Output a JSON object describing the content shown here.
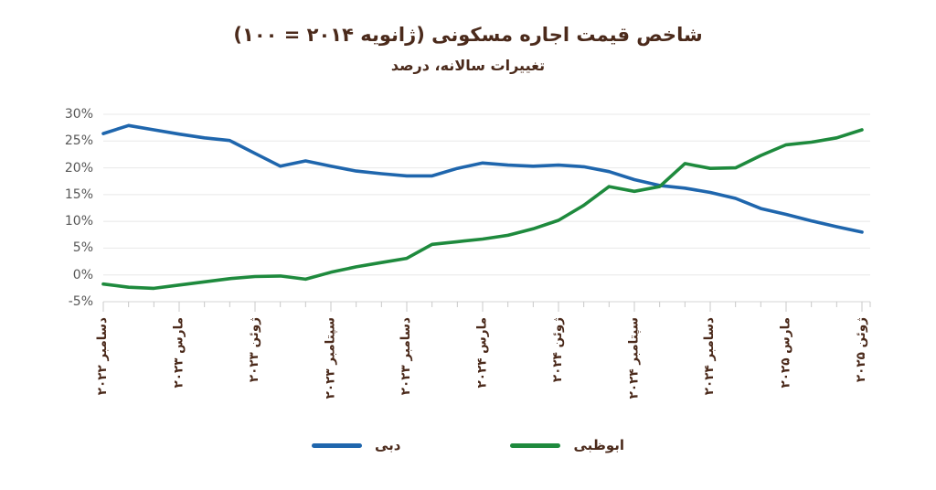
{
  "header": {
    "title": "شاخص قیمت اجاره مسکونی (ژانویه ۲۰۱۴ = ۱۰۰)",
    "subtitle": "تغییرات سالانه، درصد",
    "title_color": "#4b2a1b"
  },
  "colors": {
    "dubai_blue": "#1f66ad",
    "abudhabi_green": "#1e8a3d",
    "heading_brown": "#4b2a1b",
    "axis_text_gray": "#575757",
    "gridline": "#e8e8e8",
    "axis_line": "#d6d6d6",
    "tick": "#c8c8c8",
    "background": "#ffffff"
  },
  "chart_data": {
    "type": "line",
    "title": "شاخص قیمت اجاره مسکونی (ژانویه ۲۰۱۴ = ۱۰۰)",
    "subtitle": "تغییرات سالانه، درصد",
    "xlabel": "",
    "ylabel": "تغییرات سالانه، درصد",
    "ylim": [
      -5,
      30
    ],
    "grid": true,
    "legend_position": "bottom",
    "months": [
      "2022-12",
      "2023-01",
      "2023-02",
      "2023-03",
      "2023-04",
      "2023-05",
      "2023-06",
      "2023-07",
      "2023-08",
      "2023-09",
      "2023-10",
      "2023-11",
      "2023-12",
      "2024-01",
      "2024-02",
      "2024-03",
      "2024-04",
      "2024-05",
      "2024-06",
      "2024-07",
      "2024-08",
      "2024-09",
      "2024-10",
      "2024-11",
      "2024-12",
      "2025-01",
      "2025-02",
      "2025-03",
      "2025-04",
      "2025-05",
      "2025-06"
    ],
    "y_ticks": [
      30,
      25,
      20,
      15,
      10,
      5,
      0,
      -5
    ],
    "y_tick_labels": [
      "30%",
      "25%",
      "20%",
      "15%",
      "10%",
      "5%",
      "0%",
      "-5%"
    ],
    "x_tick_indices": [
      0,
      3,
      6,
      9,
      12,
      15,
      18,
      21,
      24,
      27,
      30
    ],
    "x_tick_labels": [
      "دسامبر ۲۰۲۲",
      "مارس ۲۰۲۳",
      "ژوئن ۲۰۲۳",
      "سپتامبر ۲۰۲۳",
      "دسامبر ۲۰۲۳",
      "مارس ۲۰۲۴",
      "ژوئن ۲۰۲۴",
      "سپتامبر ۲۰۲۴",
      "دسامبر ۲۰۲۴",
      "مارس ۲۰۲۵",
      "ژوئن ۲۰۲۵"
    ],
    "series": [
      {
        "name": "دبی",
        "color": "#1f66ad",
        "values": [
          26.4,
          27.9,
          27.1,
          26.3,
          25.6,
          25.1,
          22.7,
          20.3,
          21.3,
          20.3,
          19.4,
          18.9,
          18.5,
          18.5,
          19.9,
          20.9,
          20.5,
          20.3,
          20.5,
          20.2,
          19.3,
          17.8,
          16.7,
          16.2,
          15.4,
          14.3,
          12.4,
          11.3,
          10.1,
          9.0,
          8.0
        ]
      },
      {
        "name": "ابوظبی",
        "color": "#1e8a3d",
        "values": [
          -1.7,
          -2.3,
          -2.5,
          -1.9,
          -1.3,
          -0.7,
          -0.3,
          -0.2,
          -0.8,
          0.5,
          1.5,
          2.3,
          3.1,
          5.7,
          6.2,
          6.7,
          7.4,
          8.6,
          10.2,
          13.0,
          16.5,
          15.6,
          16.5,
          20.8,
          19.9,
          20.0,
          22.3,
          24.3,
          24.8,
          25.6,
          27.1
        ]
      }
    ]
  },
  "legend": {
    "items": [
      {
        "label": "دبی",
        "color": "#1f66ad"
      },
      {
        "label": "ابوظبی",
        "color": "#1e8a3d"
      }
    ]
  }
}
